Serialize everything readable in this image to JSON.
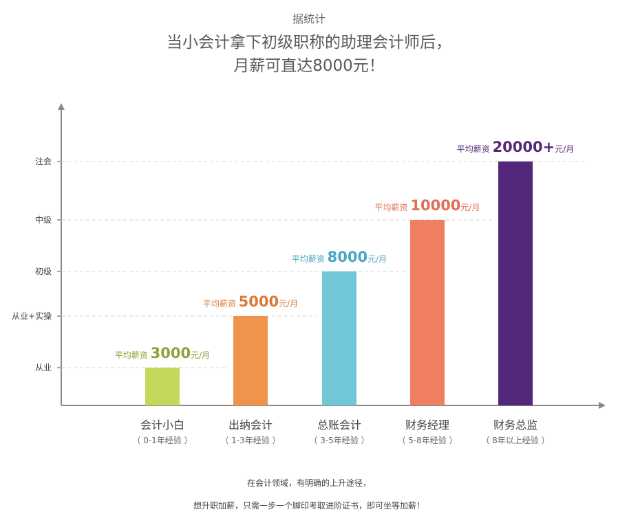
{
  "header": {
    "source": "据统计",
    "title_line1": "当小会计拿下初级职称的助理会计师后，",
    "title_line2": "月薪可直达8000元！"
  },
  "footer": {
    "line1": "在会计领域，有明确的上升途径，",
    "line2": "想升职加薪，只需一步一个脚印考取进阶证书，即可坐等加薪！"
  },
  "chart_data": {
    "type": "bar",
    "y_levels": [
      "从业",
      "从业+实操",
      "初级",
      "中级",
      "注会"
    ],
    "categories": [
      "会计小白",
      "出纳会计",
      "总账会计",
      "财务经理",
      "财务总监"
    ],
    "experience": [
      "（ 0-1年经验 ）",
      "（ 1-3年经验 ）",
      "（ 3-5年经验 ）",
      "（ 5-8年经验 ）",
      "（ 8年以上经验 ）"
    ],
    "levels": [
      "从业",
      "从业+实操",
      "初级",
      "中级",
      "注会"
    ],
    "salary_prefix": "平均薪资",
    "salaries": [
      "3000",
      "5000",
      "8000",
      "10000",
      "20000+"
    ],
    "salary_unit": "元/月",
    "colors": [
      "#c5d75b",
      "#f0944b",
      "#71c6d8",
      "#f07e61",
      "#53287a"
    ],
    "label_colors": [
      "#8aa33a",
      "#d97a3a",
      "#4aa5c4",
      "#e07055",
      "#53287a"
    ],
    "grid": "dashed"
  }
}
